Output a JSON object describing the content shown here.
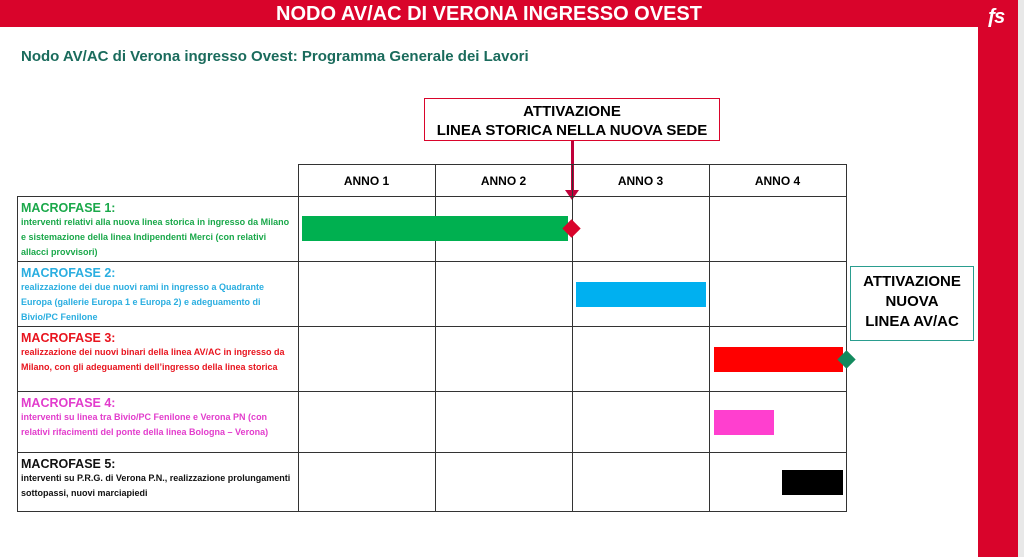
{
  "header": {
    "title": "NODO AV/AC DI VERONA INGRESSO OVEST",
    "logo": "FS"
  },
  "subtitle": "Nodo AV/AC di Verona ingresso Ovest: Programma Generale dei Lavori",
  "callouts": {
    "first": {
      "line1": "ATTIVAZIONE",
      "line2": "LINEA STORICA NELLA NUOVA SEDE"
    },
    "second": {
      "line1": "ATTIVAZIONE",
      "line2": "NUOVA",
      "line3": "LINEA AV/AC"
    }
  },
  "colors": {
    "brand": "#d9042b",
    "mf1": "#00b050",
    "mf2": "#00b0f0",
    "mf3": "#ff0000",
    "mf4": "#ff3fcf",
    "mf5": "#000000",
    "milestone1": "#d9042b",
    "milestone2": "#138a5e"
  },
  "years": [
    "ANNO 1",
    "ANNO 2",
    "ANNO 3",
    "ANNO 4"
  ],
  "phases": [
    {
      "name": "MACROFASE 1:",
      "desc": "interventi relativi alla nuova linea storica in ingresso da Milano e sistemazione della linea Indipendenti Merci (con relativi allacci provvisori)",
      "color": "#1aa84a",
      "bar_color": "#00b050",
      "start_year": 0,
      "end_year": 2
    },
    {
      "name": "MACROFASE 2:",
      "desc": "realizzazione dei due nuovi rami in ingresso a Quadrante Europa (gallerie Europa 1 e Europa 2) e adeguamento di Bivio/PC Fenilone",
      "color": "#2aaee0",
      "bar_color": "#00b0f0",
      "start_year": 2,
      "end_year": 3
    },
    {
      "name": "MACROFASE 3:",
      "desc": "realizzazione dei nuovi binari della linea AV/AC in ingresso da Milano, con gli adeguamenti dell’ingresso della linea storica",
      "color": "#e8141e",
      "bar_color": "#ff0000",
      "start_year": 3,
      "end_year": 4
    },
    {
      "name": "MACROFASE 4:",
      "desc": "interventi su linea tra Bivio/PC Fenilone e Verona PN (con relativi rifacimenti del ponte della linea Bologna – Verona)",
      "color": "#e23ccc",
      "bar_color": "#ff3fcf",
      "start_year": 3,
      "end_year": 3.5
    },
    {
      "name": "MACROFASE 5:",
      "desc": "interventi su P.R.G. di Verona P.N., realizzazione prolungamenti sottopassi, nuovi marciapiedi",
      "color": "#111111",
      "bar_color": "#000000",
      "start_year": 3.5,
      "end_year": 4
    }
  ],
  "milestones": [
    {
      "year": 2,
      "phase": 0,
      "color": "#d9042b"
    },
    {
      "year": 4,
      "phase": 2,
      "color": "#138a5e"
    }
  ]
}
